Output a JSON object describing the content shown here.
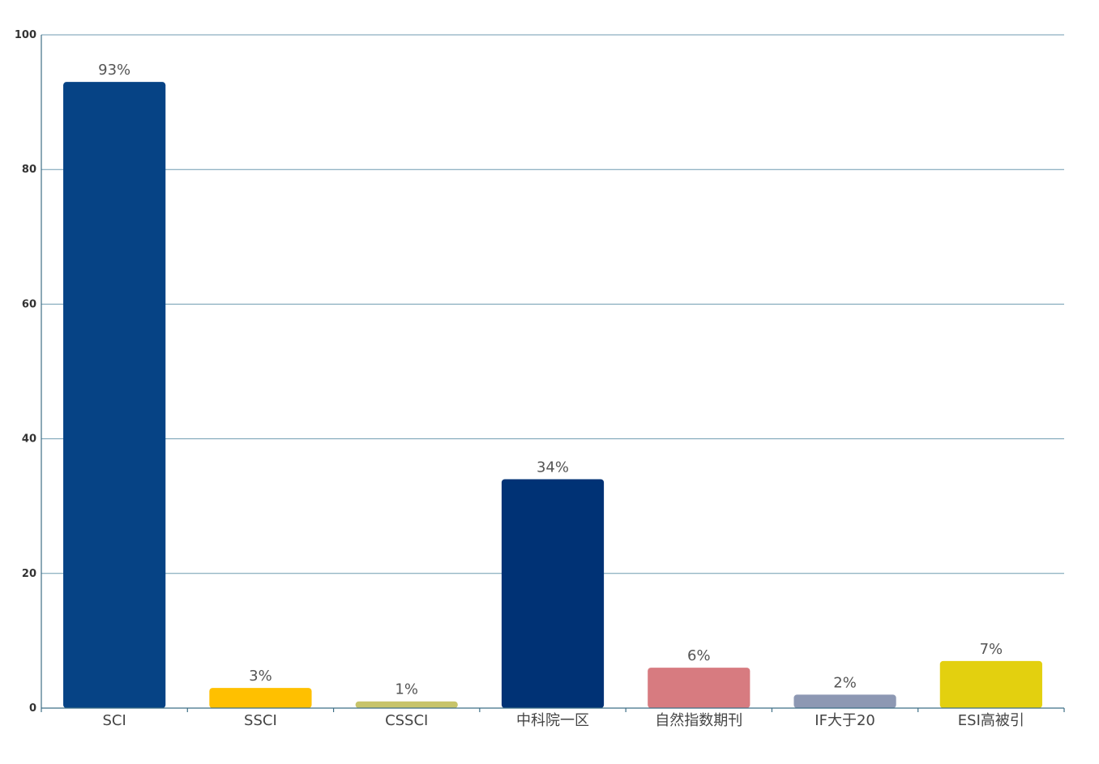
{
  "chart_data": {
    "type": "bar",
    "categories": [
      "SCI",
      "SSCI",
      "CSSCI",
      "中科院一区",
      "自然指数期刊",
      "IF大于20",
      "ESI高被引"
    ],
    "values": [
      93,
      3,
      1,
      34,
      6,
      2,
      7
    ],
    "data_labels": [
      "93%",
      "3%",
      "1%",
      "34%",
      "6%",
      "2%",
      "7%"
    ],
    "colors": [
      "#064385",
      "#ffc000",
      "#c7c46a",
      "#003275",
      "#d77b80",
      "#8d98b3",
      "#e3d00f"
    ],
    "ylim": [
      0,
      100
    ],
    "yticks": [
      0,
      20,
      40,
      60,
      80,
      100
    ],
    "grid": true,
    "title": "",
    "xlabel": "",
    "ylabel": ""
  }
}
